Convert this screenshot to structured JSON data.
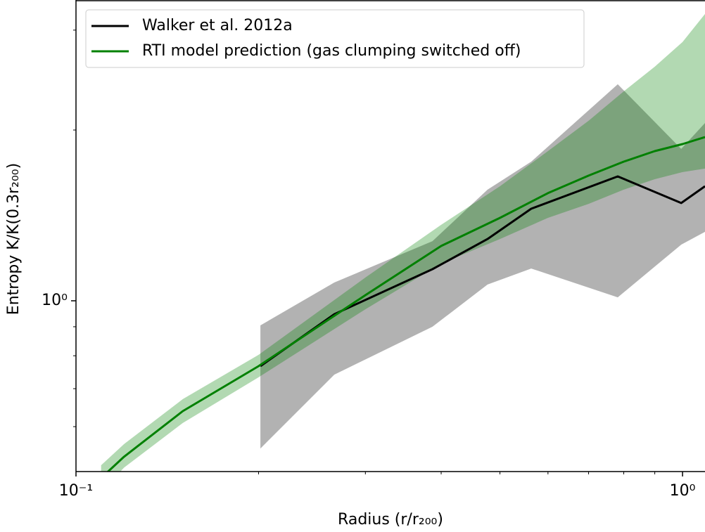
{
  "chart_data": {
    "type": "line",
    "xlabel": "Radius (r/r₂₀₀)",
    "ylabel": "Entropy K/K(0.3r₂₀₀)",
    "xlog": true,
    "ylog": true,
    "xlim": [
      0.1,
      1.089
    ],
    "ylim": [
      0.5,
      3.39
    ],
    "xticks": [
      {
        "value": 0.1,
        "label": "10⁻¹"
      },
      {
        "value": 1,
        "label": "10⁰"
      }
    ],
    "xminorticks": [
      0.2,
      0.3,
      0.4,
      0.5,
      0.6,
      0.7,
      0.8,
      0.9
    ],
    "yticks": [
      {
        "value": 1,
        "label": "10⁰"
      }
    ],
    "yminorticks": [
      0.6,
      0.7,
      0.8,
      0.9,
      2,
      3
    ],
    "legend": "upper left",
    "series": [
      {
        "name": "Walker et al. 2012a",
        "color": "#000000",
        "band_color": "#000000",
        "x": [
          0.2014,
          0.2666,
          0.387,
          0.477,
          0.563,
          0.782,
          0.995,
          1.089
        ],
        "values": [
          0.767,
          0.947,
          1.137,
          1.285,
          1.453,
          1.657,
          1.487,
          1.592
        ],
        "lower": [
          0.549,
          0.741,
          0.9,
          1.068,
          1.14,
          1.014,
          1.256,
          1.323
        ],
        "upper": [
          0.905,
          1.077,
          1.274,
          1.57,
          1.759,
          2.408,
          1.852,
          2.058
        ]
      },
      {
        "name": "RTI model prediction (gas clumping switched off)",
        "color": "#008000",
        "band_color": "#008000",
        "x": [
          0.11,
          0.12,
          0.15,
          0.2,
          0.3,
          0.4,
          0.5,
          0.6,
          0.7,
          0.8,
          0.9,
          1.0,
          1.089
        ],
        "values": [
          0.487,
          0.531,
          0.639,
          0.767,
          1.023,
          1.249,
          1.4,
          1.548,
          1.662,
          1.759,
          1.836,
          1.889,
          1.944
        ],
        "lower": [
          0.46,
          0.508,
          0.609,
          0.733,
          0.966,
          1.163,
          1.285,
          1.4,
          1.482,
          1.57,
          1.638,
          1.686,
          1.71
        ],
        "upper": [
          0.513,
          0.559,
          0.671,
          0.803,
          1.099,
          1.361,
          1.592,
          1.836,
          2.076,
          2.34,
          2.586,
          2.858,
          3.203
        ]
      }
    ]
  }
}
